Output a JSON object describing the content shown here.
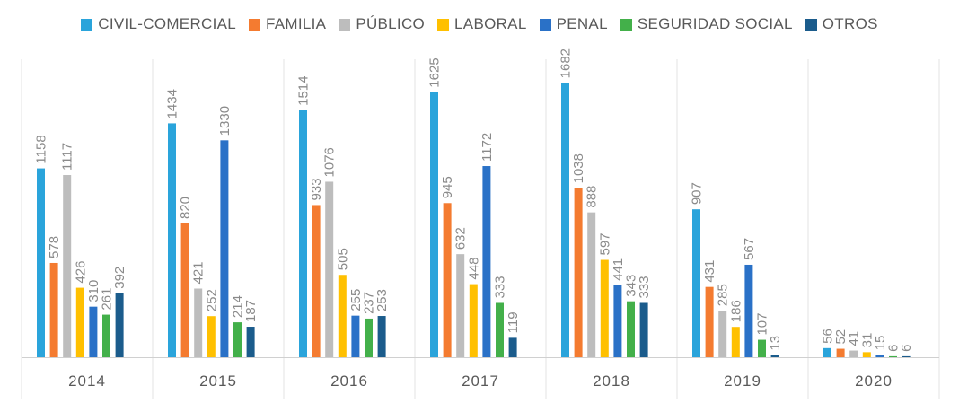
{
  "chart_data": {
    "type": "bar",
    "title": "",
    "xlabel": "",
    "ylabel": "",
    "ylim": [
      0,
      1750
    ],
    "grid": false,
    "legend_position": "top",
    "categories": [
      "2014",
      "2015",
      "2016",
      "2017",
      "2018",
      "2019",
      "2020"
    ],
    "series": [
      {
        "name": "CIVIL-COMERCIAL",
        "color": "#2AA4DB",
        "values": [
          1158,
          1434,
          1514,
          1625,
          1682,
          907,
          56
        ]
      },
      {
        "name": "FAMILIA",
        "color": "#F47B30",
        "values": [
          578,
          820,
          933,
          945,
          1038,
          431,
          52
        ]
      },
      {
        "name": "PÚBLICO",
        "color": "#BDBDBD",
        "values": [
          1117,
          421,
          1076,
          632,
          888,
          285,
          41
        ]
      },
      {
        "name": "LABORAL",
        "color": "#FFC000",
        "values": [
          426,
          252,
          505,
          448,
          597,
          186,
          31
        ]
      },
      {
        "name": "PENAL",
        "color": "#2A71C7",
        "values": [
          310,
          1330,
          255,
          1172,
          441,
          567,
          15
        ]
      },
      {
        "name": "SEGURIDAD SOCIAL",
        "color": "#43B04A",
        "values": [
          261,
          214,
          237,
          333,
          343,
          107,
          6
        ]
      },
      {
        "name": "OTROS",
        "color": "#1B5C8C",
        "values": [
          392,
          187,
          253,
          119,
          333,
          13,
          6
        ]
      }
    ]
  }
}
